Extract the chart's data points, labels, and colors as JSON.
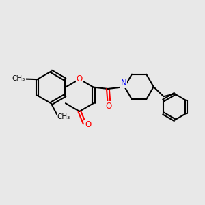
{
  "bg_color": "#e8e8e8",
  "bond_color": "#000000",
  "oxygen_color": "#ff0000",
  "nitrogen_color": "#0000ff",
  "line_width": 1.5,
  "figsize": [
    3.0,
    3.0
  ],
  "dpi": 100,
  "xlim": [
    0,
    10
  ],
  "ylim": [
    0,
    10
  ]
}
